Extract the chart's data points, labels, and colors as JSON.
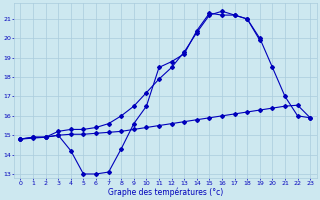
{
  "xlabel": "Graphe des températures (°c)",
  "xlim": [
    -0.5,
    23.5
  ],
  "ylim": [
    12.8,
    21.8
  ],
  "yticks": [
    13,
    14,
    15,
    16,
    17,
    18,
    19,
    20,
    21
  ],
  "xticks": [
    0,
    1,
    2,
    3,
    4,
    5,
    6,
    7,
    8,
    9,
    10,
    11,
    12,
    13,
    14,
    15,
    16,
    17,
    18,
    19,
    20,
    21,
    22,
    23
  ],
  "background_color": "#cde8f0",
  "grid_color": "#aaccdd",
  "line_color": "#0000bb",
  "curve1_x": [
    0,
    1,
    2,
    3,
    4,
    5,
    6,
    7,
    8,
    9,
    10,
    11,
    12,
    13,
    14,
    15,
    16,
    17,
    18,
    19
  ],
  "curve1_y": [
    14.8,
    14.9,
    14.9,
    15.0,
    14.2,
    13.0,
    13.0,
    13.1,
    14.3,
    15.6,
    16.5,
    18.5,
    18.8,
    19.2,
    20.4,
    21.3,
    21.2,
    21.2,
    21.0,
    19.9
  ],
  "curve2_x": [
    0,
    1,
    2,
    3,
    4,
    5,
    6,
    7,
    8,
    9,
    10,
    11,
    12,
    13,
    14,
    15,
    16,
    17,
    18,
    19,
    20,
    21,
    22,
    23
  ],
  "curve2_y": [
    14.8,
    14.85,
    14.9,
    15.0,
    15.05,
    15.05,
    15.1,
    15.15,
    15.2,
    15.3,
    15.4,
    15.5,
    15.6,
    15.7,
    15.8,
    15.9,
    16.0,
    16.1,
    16.2,
    16.3,
    16.4,
    16.5,
    16.55,
    15.9
  ],
  "curve3_x": [
    0,
    1,
    2,
    3,
    4,
    5,
    6,
    7,
    8,
    9,
    10,
    11,
    12,
    13,
    14,
    15,
    16,
    17,
    18,
    19,
    20,
    21,
    22,
    23
  ],
  "curve3_y": [
    14.8,
    14.9,
    14.9,
    15.2,
    15.3,
    15.3,
    15.4,
    15.6,
    16.0,
    16.5,
    17.2,
    17.9,
    18.5,
    19.3,
    20.3,
    21.2,
    21.4,
    21.2,
    21.0,
    20.0,
    18.5,
    17.0,
    16.0,
    15.9
  ]
}
